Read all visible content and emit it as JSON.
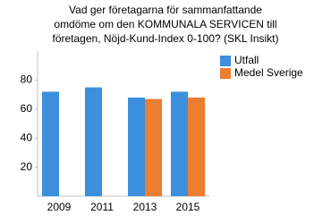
{
  "chart_data": {
    "type": "bar",
    "title": [
      "Vad ger företagarna för sammanfattande",
      "omdöme om den KOMMUNALA SERVICEN till",
      "företagen, Nöjd-Kund-Index 0-100? (SKL Insikt)"
    ],
    "categories": [
      "2009",
      "2011",
      "2013",
      "2015"
    ],
    "series": [
      {
        "name": "Utfall",
        "color": "#3c8fdc",
        "values": [
          72,
          75,
          68,
          72
        ]
      },
      {
        "name": "Medel Sverige",
        "color": "#ed7d31",
        "values": [
          null,
          null,
          67,
          68
        ]
      }
    ],
    "ylim": [
      0,
      100
    ],
    "yticks": [
      20,
      40,
      60,
      80
    ],
    "grid": false
  }
}
